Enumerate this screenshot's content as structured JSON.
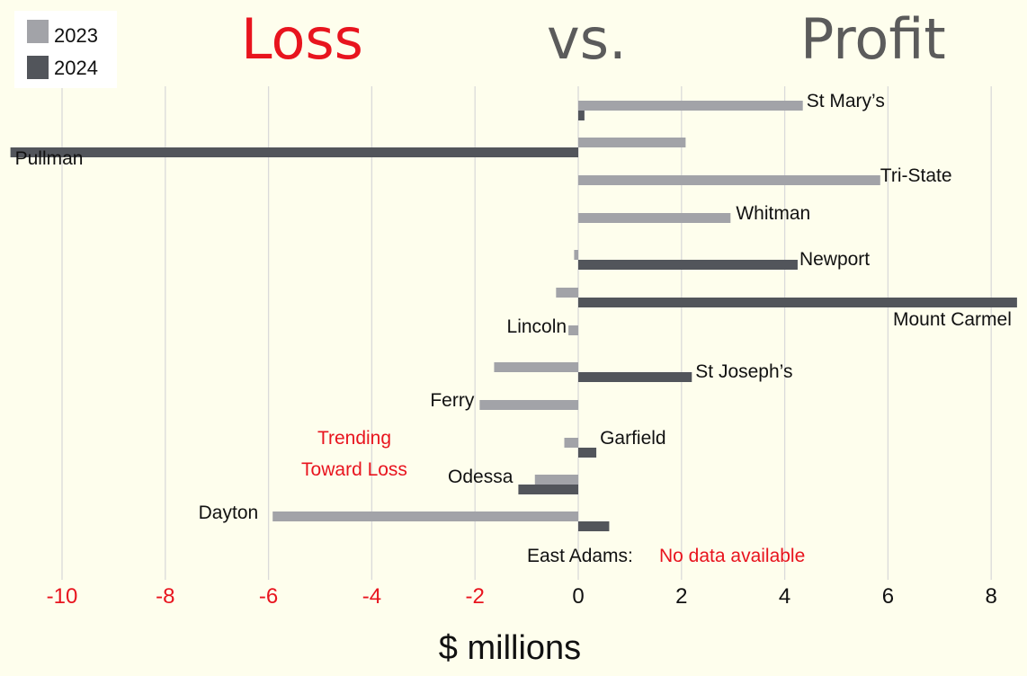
{
  "title": {
    "left": "Loss",
    "middle": "vs.",
    "right": "Profit"
  },
  "colors": {
    "y2023": "#a2a3a8",
    "y2024": "#52555b",
    "loss": "#e8141e",
    "profit": "#5b5b5b",
    "grid": "#dadada"
  },
  "legend": [
    "2023",
    "2024"
  ],
  "annotation": {
    "line1": "Trending",
    "line2": "Toward Loss"
  },
  "no_data": {
    "name": "East Adams:",
    "text": "No data available"
  },
  "chart_data": {
    "type": "bar",
    "orientation": "horizontal",
    "xlabel": "$ millions",
    "xlim": [
      -11,
      8.5
    ],
    "xticks": [
      -10,
      -8,
      -6,
      -4,
      -2,
      0,
      2,
      4,
      6,
      8
    ],
    "grid": true,
    "legend_position": "top-left",
    "categories": [
      "St Mary’s",
      "Pullman",
      "Tri-State",
      "Whitman",
      "Newport",
      "Mount Carmel",
      "Lincoln",
      "St Joseph’s",
      "Ferry",
      "Garfield",
      "Odessa",
      "Dayton"
    ],
    "series": [
      {
        "name": "2023",
        "values": [
          4.35,
          2.08,
          5.85,
          2.95,
          -0.08,
          -0.43,
          -0.19,
          -1.63,
          -1.91,
          -0.27,
          -0.84,
          -5.92
        ]
      },
      {
        "name": "2024",
        "values": [
          0.12,
          -11.0,
          null,
          null,
          4.25,
          8.5,
          null,
          2.2,
          null,
          0.35,
          -1.16,
          0.6
        ]
      }
    ]
  }
}
